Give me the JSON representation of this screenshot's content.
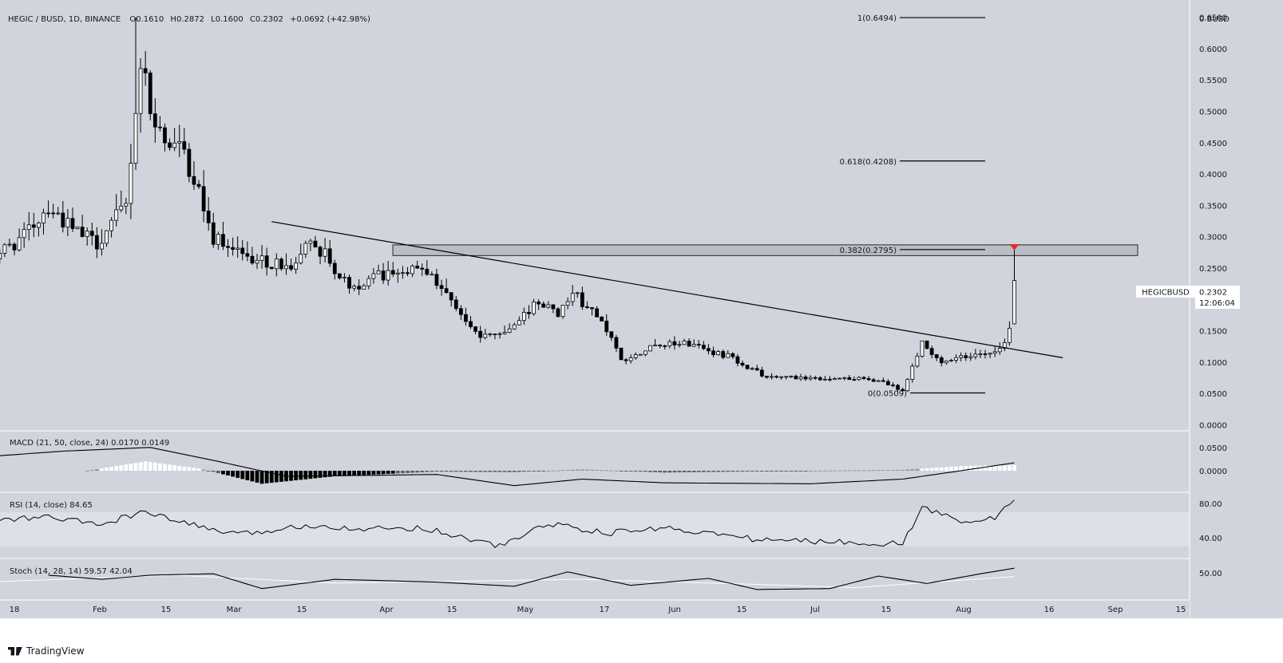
{
  "header": {
    "symbol": "HEGIC / BUSD, 1D, BINANCE",
    "o_label": "O",
    "o": "0.1610",
    "h_label": "H",
    "h": "0.2872",
    "l_label": "L",
    "l": "0.1600",
    "c_label": "C",
    "c": "0.2302",
    "change": "+0.0692 (+42.98%)"
  },
  "price_label": {
    "symbol": "HEGICBUSD",
    "price": "0.2302",
    "countdown": "12:06:04"
  },
  "footer": {
    "brand": "TradingView"
  },
  "colors": {
    "background": "#d1d4dc",
    "up_body": "#ffffff",
    "down_body": "#000000",
    "wick": "#000000",
    "arrow": "#e62e2e",
    "zone_fill": "#b2b5be",
    "hist_positive": "#ffffff",
    "hist_negative": "#000000",
    "rsi_band": "#dde0e6"
  },
  "chart_data": {
    "type": "candlestick",
    "unit": "BUSD",
    "y_ticks": [
      "0.6500",
      "0.6000",
      "0.5500",
      "0.5000",
      "0.4500",
      "0.4000",
      "0.3500",
      "0.3000",
      "0.2500",
      "0.2000",
      "0.1500",
      "0.1000",
      "0.0500",
      "0.0000"
    ],
    "y_axis_top_label": "0 BUSD",
    "x_ticks": [
      "18",
      "Feb",
      "15",
      "Mar",
      "15",
      "Apr",
      "15",
      "May",
      "17",
      "Jun",
      "15",
      "Jul",
      "15",
      "Aug",
      "16",
      "Sep",
      "15"
    ],
    "fib_levels": [
      {
        "label": "1(0.6494)",
        "value": 0.6494
      },
      {
        "label": "0.618(0.4208)",
        "value": 0.4208
      },
      {
        "label": "0.382(0.2795)",
        "value": 0.2795
      },
      {
        "label": "0(0.0509)",
        "value": 0.0509
      }
    ],
    "resistance_zone": [
      0.27,
      0.287
    ],
    "trendline": [
      {
        "date": "2021-03-12",
        "price": 0.324
      },
      {
        "date": "2021-08-22",
        "price": 0.107
      }
    ],
    "keypoints": [
      {
        "date": "2021-01-12",
        "price": 0.26
      },
      {
        "date": "2021-01-20",
        "price": 0.3
      },
      {
        "date": "2021-01-25",
        "price": 0.35
      },
      {
        "date": "2021-01-30",
        "price": 0.31
      },
      {
        "date": "2021-02-04",
        "price": 0.29
      },
      {
        "date": "2021-02-10",
        "price": 0.35
      },
      {
        "date": "2021-02-13",
        "price": 0.58
      },
      {
        "date": "2021-02-16",
        "price": 0.47
      },
      {
        "date": "2021-02-22",
        "price": 0.43
      },
      {
        "date": "2021-02-28",
        "price": 0.3
      },
      {
        "date": "2021-03-10",
        "price": 0.26
      },
      {
        "date": "2021-03-17",
        "price": 0.25
      },
      {
        "date": "2021-03-20",
        "price": 0.3
      },
      {
        "date": "2021-03-28",
        "price": 0.22
      },
      {
        "date": "2021-04-08",
        "price": 0.25
      },
      {
        "date": "2021-04-15",
        "price": 0.23
      },
      {
        "date": "2021-04-24",
        "price": 0.14
      },
      {
        "date": "2021-04-30",
        "price": 0.15
      },
      {
        "date": "2021-05-05",
        "price": 0.19
      },
      {
        "date": "2021-05-10",
        "price": 0.18
      },
      {
        "date": "2021-05-13",
        "price": 0.21
      },
      {
        "date": "2021-05-19",
        "price": 0.17
      },
      {
        "date": "2021-05-23",
        "price": 0.1
      },
      {
        "date": "2021-05-30",
        "price": 0.13
      },
      {
        "date": "2021-06-05",
        "price": 0.13
      },
      {
        "date": "2021-06-14",
        "price": 0.11
      },
      {
        "date": "2021-06-22",
        "price": 0.075
      },
      {
        "date": "2021-07-01",
        "price": 0.075
      },
      {
        "date": "2021-07-15",
        "price": 0.072
      },
      {
        "date": "2021-07-20",
        "price": 0.053
      },
      {
        "date": "2021-07-24",
        "price": 0.13
      },
      {
        "date": "2021-07-28",
        "price": 0.1
      },
      {
        "date": "2021-08-07",
        "price": 0.115
      },
      {
        "date": "2021-08-10",
        "price": 0.13
      },
      {
        "date": "2021-08-11",
        "price": 0.158
      }
    ],
    "last_candle": {
      "date": "2021-08-12",
      "open": 0.161,
      "high": 0.2872,
      "low": 0.16,
      "close": 0.2302
    },
    "indicators": {
      "macd": {
        "label": "MACD (21, 50, close, 24)",
        "macd": "0.0170",
        "signal": "0.0149",
        "ticks": [
          "0.0500",
          "0.0000"
        ],
        "keypoints": [
          {
            "date": "2021-01-12",
            "value": 0.03
          },
          {
            "date": "2021-01-28",
            "value": 0.042
          },
          {
            "date": "2021-02-15",
            "value": 0.05
          },
          {
            "date": "2021-03-01",
            "value": 0.02
          },
          {
            "date": "2021-03-15",
            "value": -0.012
          },
          {
            "date": "2021-04-01",
            "value": -0.01
          },
          {
            "date": "2021-04-15",
            "value": -0.008
          },
          {
            "date": "2021-05-01",
            "value": -0.032
          },
          {
            "date": "2021-05-15",
            "value": -0.018
          },
          {
            "date": "2021-06-01",
            "value": -0.026
          },
          {
            "date": "2021-07-01",
            "value": -0.028
          },
          {
            "date": "2021-07-20",
            "value": -0.018
          },
          {
            "date": "2021-08-01",
            "value": 0.0
          },
          {
            "date": "2021-08-12",
            "value": 0.017
          }
        ],
        "hist_keypoints": [
          {
            "date": "2021-02-02",
            "value": 0.0
          },
          {
            "date": "2021-02-14",
            "value": 0.02
          },
          {
            "date": "2021-02-25",
            "value": 0.005
          },
          {
            "date": "2021-03-10",
            "value": -0.028
          },
          {
            "date": "2021-03-25",
            "value": -0.012
          },
          {
            "date": "2021-04-15",
            "value": -0.002
          },
          {
            "date": "2021-05-01",
            "value": -0.003
          },
          {
            "date": "2021-05-15",
            "value": 0.003
          },
          {
            "date": "2021-06-01",
            "value": -0.004
          },
          {
            "date": "2021-07-01",
            "value": 0.0
          },
          {
            "date": "2021-07-20",
            "value": 0.002
          },
          {
            "date": "2021-08-01",
            "value": 0.01
          },
          {
            "date": "2021-08-12",
            "value": 0.012
          }
        ]
      },
      "rsi": {
        "label": "RSI (14, close)",
        "value": "84.65",
        "ticks": [
          "80.00",
          "40.00"
        ],
        "keypoints": [
          {
            "date": "2021-01-12",
            "value": 60
          },
          {
            "date": "2021-01-25",
            "value": 64
          },
          {
            "date": "2021-02-05",
            "value": 55
          },
          {
            "date": "2021-02-13",
            "value": 70
          },
          {
            "date": "2021-02-20",
            "value": 60
          },
          {
            "date": "2021-03-05",
            "value": 43
          },
          {
            "date": "2021-03-20",
            "value": 55
          },
          {
            "date": "2021-04-01",
            "value": 50
          },
          {
            "date": "2021-04-12",
            "value": 52
          },
          {
            "date": "2021-04-28",
            "value": 30
          },
          {
            "date": "2021-05-08",
            "value": 57
          },
          {
            "date": "2021-05-20",
            "value": 45
          },
          {
            "date": "2021-06-01",
            "value": 52
          },
          {
            "date": "2021-06-20",
            "value": 38
          },
          {
            "date": "2021-07-01",
            "value": 36
          },
          {
            "date": "2021-07-20",
            "value": 33
          },
          {
            "date": "2021-07-24",
            "value": 75
          },
          {
            "date": "2021-08-01",
            "value": 60
          },
          {
            "date": "2021-08-08",
            "value": 62
          },
          {
            "date": "2021-08-12",
            "value": 85
          }
        ]
      },
      "stoch": {
        "label": "Stoch (14, 28, 14)",
        "k": "59.57",
        "d": "42.04",
        "ticks": [
          "50.00"
        ],
        "k_keypoints": [
          {
            "date": "2021-01-25",
            "value": 45
          },
          {
            "date": "2021-02-05",
            "value": 36
          },
          {
            "date": "2021-02-15",
            "value": 45
          },
          {
            "date": "2021-02-28",
            "value": 48
          },
          {
            "date": "2021-03-10",
            "value": 16
          },
          {
            "date": "2021-03-25",
            "value": 36
          },
          {
            "date": "2021-04-15",
            "value": 30
          },
          {
            "date": "2021-05-01",
            "value": 21
          },
          {
            "date": "2021-05-12",
            "value": 52
          },
          {
            "date": "2021-05-25",
            "value": 23
          },
          {
            "date": "2021-06-10",
            "value": 38
          },
          {
            "date": "2021-06-20",
            "value": 14
          },
          {
            "date": "2021-07-05",
            "value": 16
          },
          {
            "date": "2021-07-15",
            "value": 43
          },
          {
            "date": "2021-07-25",
            "value": 27
          },
          {
            "date": "2021-08-05",
            "value": 48
          },
          {
            "date": "2021-08-12",
            "value": 60
          }
        ],
        "d_keypoints": [
          {
            "date": "2021-01-12",
            "value": 30
          },
          {
            "date": "2021-02-20",
            "value": 45
          },
          {
            "date": "2021-03-25",
            "value": 28
          },
          {
            "date": "2021-05-15",
            "value": 36
          },
          {
            "date": "2021-06-20",
            "value": 25
          },
          {
            "date": "2021-07-10",
            "value": 18
          },
          {
            "date": "2021-08-12",
            "value": 42
          }
        ]
      }
    }
  }
}
